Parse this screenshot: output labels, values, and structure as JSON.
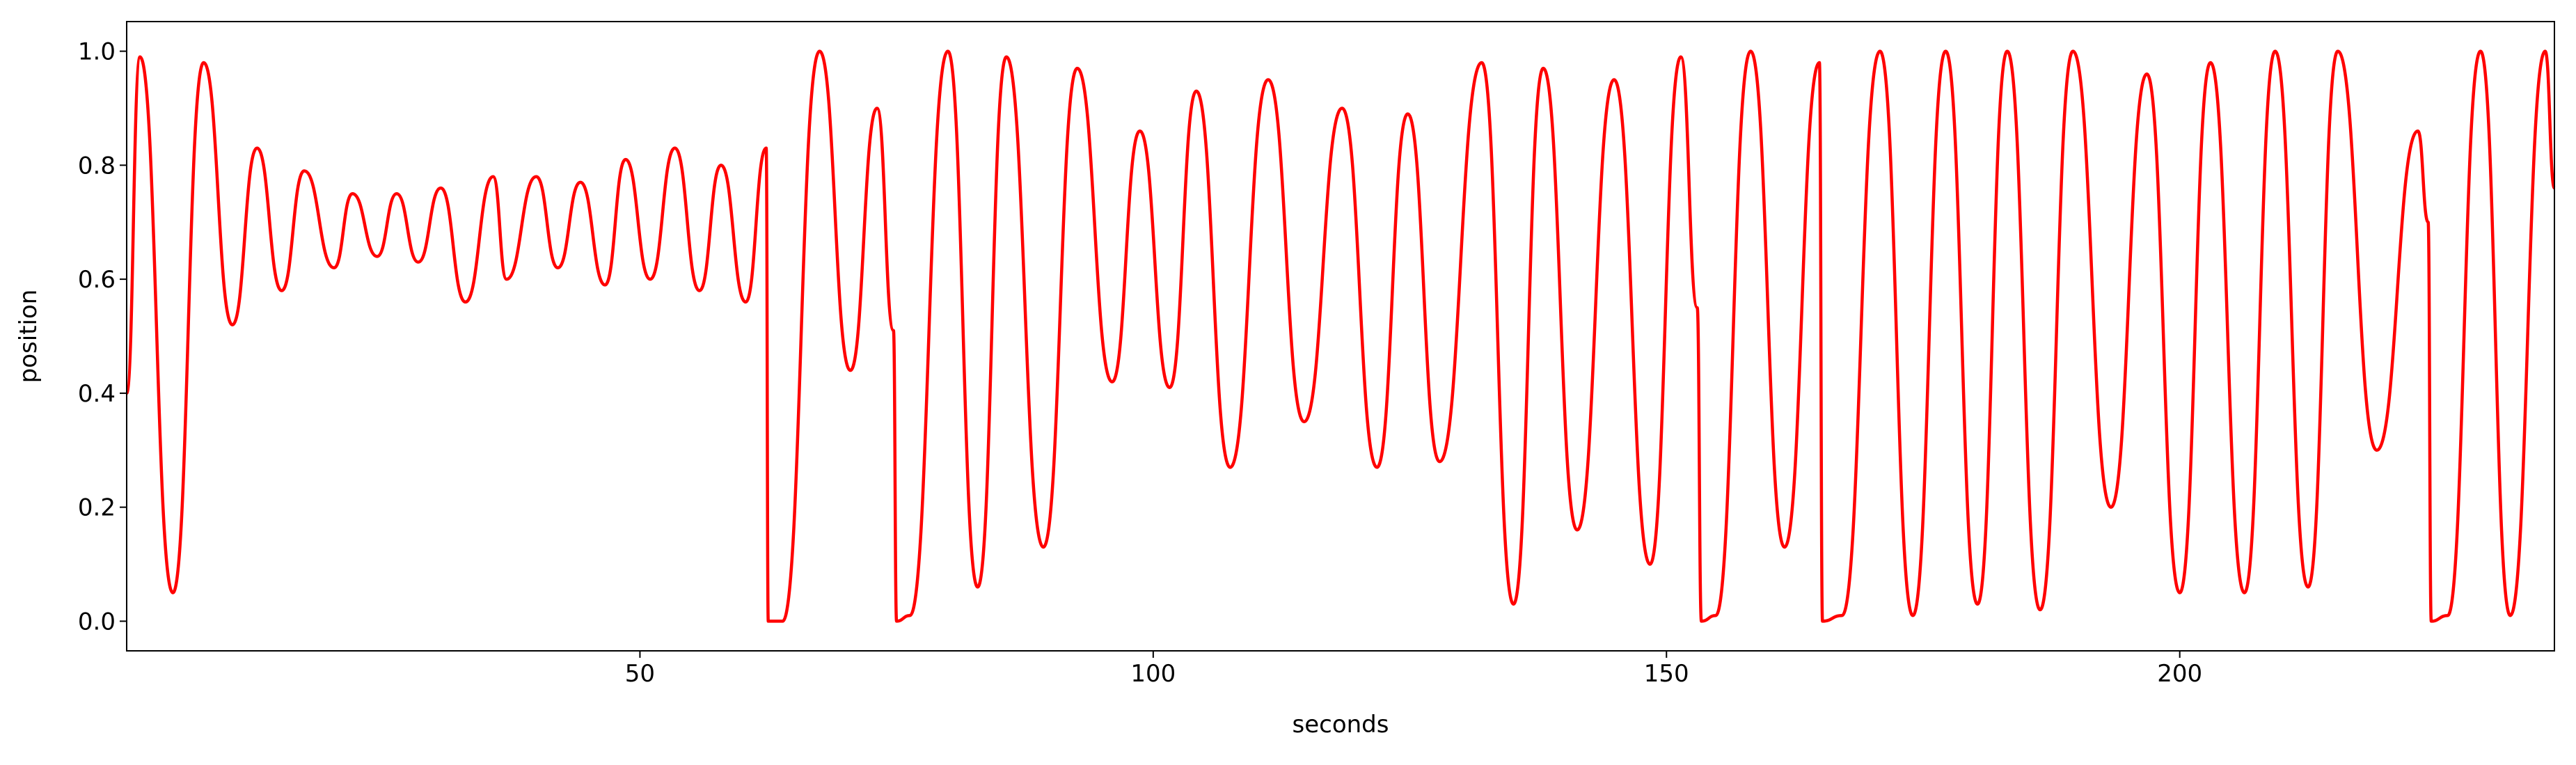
{
  "chart_data": {
    "type": "line",
    "x_label": "seconds",
    "y_label": "position",
    "xlim": [
      0,
      236.5
    ],
    "ylim": [
      -0.052,
      1.052
    ],
    "xticks": [
      50,
      100,
      150,
      200
    ],
    "yticks": [
      {
        "value": 0,
        "label": "0.0"
      },
      0.2,
      0.4,
      0.6,
      0.8,
      {
        "value": 1,
        "label": "1.0"
      }
    ],
    "grid": false,
    "series": [
      {
        "color": "#ff0000",
        "x": [
          0,
          1.3,
          4.5,
          7.5,
          10.3,
          12.7,
          15.1,
          17.3,
          20.2,
          22,
          24.4,
          26.3,
          28.4,
          30.6,
          33,
          35.7,
          37,
          39.9,
          42,
          44.2,
          46.6,
          48.6,
          51,
          53.4,
          55.8,
          57.9,
          60.3,
          62.3,
          62.5,
          63.9,
          67.5,
          70.5,
          73.1,
          74.7,
          75,
          76.3,
          80,
          82.9,
          85.7,
          89.3,
          92.6,
          96,
          98.7,
          101.6,
          104.2,
          107.5,
          111.2,
          114.7,
          118.4,
          121.8,
          124.8,
          127.9,
          132,
          135.1,
          138,
          141.3,
          144.9,
          148.4,
          151.4,
          153,
          153.4,
          154.8,
          158.2,
          161.5,
          164.9,
          165.2,
          167.1,
          170.8,
          174,
          177.2,
          180.3,
          183.2,
          186.4,
          189.6,
          193.3,
          196.8,
          200,
          203,
          206.3,
          209.3,
          212.5,
          215.4,
          219.2,
          223.2,
          224.2,
          224.5,
          226.1,
          229.3,
          232.2,
          235.6,
          236.5
        ],
        "values": [
          0.4,
          0.99,
          0.05,
          0.98,
          0.52,
          0.83,
          0.58,
          0.79,
          0.62,
          0.75,
          0.64,
          0.75,
          0.63,
          0.76,
          0.56,
          0.78,
          0.6,
          0.78,
          0.62,
          0.77,
          0.59,
          0.81,
          0.6,
          0.83,
          0.58,
          0.8,
          0.56,
          0.83,
          0.0,
          0.0,
          1.0,
          0.44,
          0.9,
          0.51,
          0.0,
          0.01,
          1.0,
          0.06,
          0.99,
          0.13,
          0.97,
          0.42,
          0.86,
          0.41,
          0.93,
          0.27,
          0.95,
          0.35,
          0.9,
          0.27,
          0.89,
          0.28,
          0.98,
          0.03,
          0.97,
          0.16,
          0.95,
          0.1,
          0.99,
          0.55,
          0.0,
          0.01,
          1.0,
          0.13,
          0.98,
          0.0,
          0.01,
          1.0,
          0.01,
          1.0,
          0.03,
          1.0,
          0.02,
          1.0,
          0.2,
          0.96,
          0.05,
          0.98,
          0.05,
          1.0,
          0.06,
          1.0,
          0.3,
          0.86,
          0.7,
          0.0,
          0.01,
          1.0,
          0.01,
          1.0,
          0.76
        ]
      }
    ]
  }
}
